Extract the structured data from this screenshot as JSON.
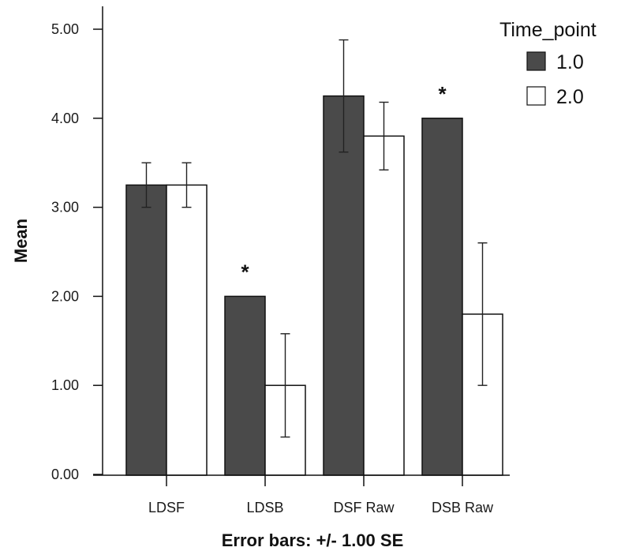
{
  "chart_data": {
    "type": "bar",
    "categories": [
      "LDSF",
      "LDSB",
      "DSF Raw",
      "DSB Raw"
    ],
    "series": [
      {
        "name": "1.0",
        "values": [
          3.25,
          2.0,
          4.25,
          4.0
        ],
        "se_low": [
          3.0,
          2.0,
          3.62,
          4.0
        ],
        "se_high": [
          3.5,
          2.0,
          4.88,
          4.0
        ],
        "color": "#4a4a4a"
      },
      {
        "name": "2.0",
        "values": [
          3.25,
          1.0,
          3.8,
          1.8
        ],
        "se_low": [
          3.0,
          0.42,
          3.42,
          1.0
        ],
        "se_high": [
          3.5,
          1.58,
          4.18,
          2.6
        ],
        "color": "#ffffff"
      }
    ],
    "significance": [
      {
        "category": "LDSB",
        "label": "*"
      },
      {
        "category": "DSB Raw",
        "label": "*"
      }
    ],
    "yticks": [
      "0.00",
      "1.00",
      "2.00",
      "3.00",
      "4.00",
      "5.00"
    ],
    "ylim": [
      0,
      5.25
    ],
    "ylabel": "Mean",
    "xlabel": "Error bars: +/- 1.00 SE",
    "legend_title": "Time_point",
    "legend_position": "top-right"
  }
}
